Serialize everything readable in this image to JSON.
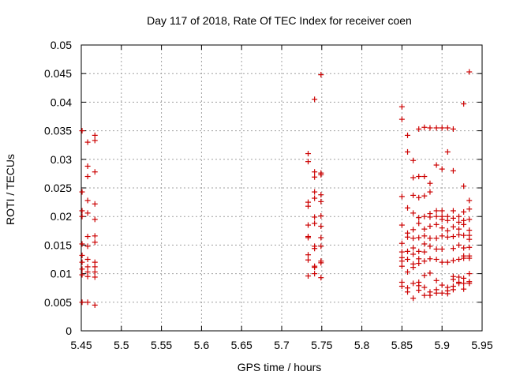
{
  "chart_data": {
    "type": "scatter",
    "title": "Day 117 of 2018, Rate Of TEC Index for receiver coen",
    "xlabel": "GPS time / hours",
    "ylabel": "ROTI / TECUs",
    "xlim": [
      5.45,
      5.95
    ],
    "ylim": [
      0,
      0.05
    ],
    "grid": true,
    "marker": "+",
    "color": "#cc0000",
    "xticks": [
      "5.45",
      "5.5",
      "5.55",
      "5.6",
      "5.65",
      "5.7",
      "5.75",
      "5.8",
      "5.85",
      "5.9",
      "5.95"
    ],
    "yticks": [
      "0",
      "0.005",
      "0.01",
      "0.015",
      "0.02",
      "0.025",
      "0.03",
      "0.035",
      "0.04",
      "0.045",
      "0.05"
    ],
    "series": [
      {
        "name": "ROTI",
        "points": [
          [
            5.451,
            0.035
          ],
          [
            5.451,
            0.0243
          ],
          [
            5.451,
            0.021
          ],
          [
            5.451,
            0.02
          ],
          [
            5.451,
            0.0152
          ],
          [
            5.451,
            0.0132
          ],
          [
            5.451,
            0.012
          ],
          [
            5.451,
            0.0108
          ],
          [
            5.451,
            0.0098
          ],
          [
            5.451,
            0.005
          ],
          [
            5.458,
            0.033
          ],
          [
            5.458,
            0.0288
          ],
          [
            5.458,
            0.027
          ],
          [
            5.458,
            0.0228
          ],
          [
            5.458,
            0.0206
          ],
          [
            5.458,
            0.0165
          ],
          [
            5.458,
            0.0148
          ],
          [
            5.458,
            0.0125
          ],
          [
            5.458,
            0.0112
          ],
          [
            5.458,
            0.0103
          ],
          [
            5.458,
            0.0095
          ],
          [
            5.458,
            0.005
          ],
          [
            5.467,
            0.0342
          ],
          [
            5.467,
            0.0333
          ],
          [
            5.467,
            0.0278
          ],
          [
            5.467,
            0.0222
          ],
          [
            5.467,
            0.0195
          ],
          [
            5.467,
            0.0166
          ],
          [
            5.467,
            0.0155
          ],
          [
            5.467,
            0.012
          ],
          [
            5.467,
            0.0112
          ],
          [
            5.467,
            0.0103
          ],
          [
            5.467,
            0.0094
          ],
          [
            5.467,
            0.0045
          ],
          [
            5.733,
            0.031
          ],
          [
            5.733,
            0.0296
          ],
          [
            5.733,
            0.0225
          ],
          [
            5.733,
            0.0218
          ],
          [
            5.733,
            0.0185
          ],
          [
            5.733,
            0.0165
          ],
          [
            5.733,
            0.0163
          ],
          [
            5.733,
            0.0133
          ],
          [
            5.733,
            0.0124
          ],
          [
            5.733,
            0.0096
          ],
          [
            5.741,
            0.0405
          ],
          [
            5.741,
            0.0278
          ],
          [
            5.741,
            0.0269
          ],
          [
            5.741,
            0.0243
          ],
          [
            5.741,
            0.0232
          ],
          [
            5.741,
            0.0199
          ],
          [
            5.741,
            0.0188
          ],
          [
            5.741,
            0.0148
          ],
          [
            5.741,
            0.0144
          ],
          [
            5.741,
            0.0113
          ],
          [
            5.741,
            0.0111
          ],
          [
            5.741,
            0.01
          ],
          [
            5.749,
            0.0448
          ],
          [
            5.749,
            0.0276
          ],
          [
            5.749,
            0.0273
          ],
          [
            5.749,
            0.0238
          ],
          [
            5.749,
            0.0226
          ],
          [
            5.749,
            0.0201
          ],
          [
            5.749,
            0.0183
          ],
          [
            5.749,
            0.0163
          ],
          [
            5.749,
            0.0148
          ],
          [
            5.749,
            0.0122
          ],
          [
            5.749,
            0.0119
          ],
          [
            5.749,
            0.0093
          ],
          [
            5.85,
            0.0392
          ],
          [
            5.85,
            0.037
          ],
          [
            5.85,
            0.0235
          ],
          [
            5.85,
            0.0185
          ],
          [
            5.85,
            0.0153
          ],
          [
            5.85,
            0.0138
          ],
          [
            5.85,
            0.0128
          ],
          [
            5.85,
            0.0122
          ],
          [
            5.85,
            0.0113
          ],
          [
            5.85,
            0.0085
          ],
          [
            5.85,
            0.0078
          ],
          [
            5.857,
            0.0342
          ],
          [
            5.857,
            0.0313
          ],
          [
            5.857,
            0.0215
          ],
          [
            5.857,
            0.0171
          ],
          [
            5.857,
            0.0164
          ],
          [
            5.857,
            0.0139
          ],
          [
            5.857,
            0.0125
          ],
          [
            5.857,
            0.0103
          ],
          [
            5.857,
            0.0075
          ],
          [
            5.857,
            0.0068
          ],
          [
            5.864,
            0.0298
          ],
          [
            5.864,
            0.0268
          ],
          [
            5.864,
            0.0237
          ],
          [
            5.864,
            0.0206
          ],
          [
            5.864,
            0.0177
          ],
          [
            5.864,
            0.0162
          ],
          [
            5.864,
            0.0145
          ],
          [
            5.864,
            0.0134
          ],
          [
            5.864,
            0.0117
          ],
          [
            5.864,
            0.0111
          ],
          [
            5.864,
            0.0083
          ],
          [
            5.864,
            0.0057
          ],
          [
            5.871,
            0.0353
          ],
          [
            5.871,
            0.027
          ],
          [
            5.871,
            0.0233
          ],
          [
            5.871,
            0.0198
          ],
          [
            5.871,
            0.0188
          ],
          [
            5.871,
            0.0163
          ],
          [
            5.871,
            0.0139
          ],
          [
            5.871,
            0.0126
          ],
          [
            5.871,
            0.0118
          ],
          [
            5.871,
            0.0085
          ],
          [
            5.871,
            0.0079
          ],
          [
            5.871,
            0.0071
          ],
          [
            5.878,
            0.0356
          ],
          [
            5.878,
            0.027
          ],
          [
            5.878,
            0.0236
          ],
          [
            5.878,
            0.02
          ],
          [
            5.878,
            0.0178
          ],
          [
            5.878,
            0.0166
          ],
          [
            5.878,
            0.0152
          ],
          [
            5.878,
            0.0138
          ],
          [
            5.878,
            0.0122
          ],
          [
            5.878,
            0.0097
          ],
          [
            5.878,
            0.0076
          ],
          [
            5.878,
            0.0062
          ],
          [
            5.885,
            0.0355
          ],
          [
            5.885,
            0.0258
          ],
          [
            5.885,
            0.0243
          ],
          [
            5.885,
            0.0205
          ],
          [
            5.885,
            0.0199
          ],
          [
            5.885,
            0.0183
          ],
          [
            5.885,
            0.0162
          ],
          [
            5.885,
            0.0148
          ],
          [
            5.885,
            0.0126
          ],
          [
            5.885,
            0.0101
          ],
          [
            5.885,
            0.0068
          ],
          [
            5.885,
            0.0062
          ],
          [
            5.893,
            0.0355
          ],
          [
            5.893,
            0.029
          ],
          [
            5.893,
            0.021
          ],
          [
            5.893,
            0.02
          ],
          [
            5.893,
            0.0186
          ],
          [
            5.893,
            0.0162
          ],
          [
            5.893,
            0.0143
          ],
          [
            5.893,
            0.0125
          ],
          [
            5.893,
            0.0088
          ],
          [
            5.893,
            0.0072
          ],
          [
            5.893,
            0.0066
          ],
          [
            5.9,
            0.0355
          ],
          [
            5.9,
            0.0283
          ],
          [
            5.9,
            0.021
          ],
          [
            5.9,
            0.02
          ],
          [
            5.9,
            0.0195
          ],
          [
            5.9,
            0.018
          ],
          [
            5.9,
            0.0166
          ],
          [
            5.9,
            0.0143
          ],
          [
            5.9,
            0.012
          ],
          [
            5.9,
            0.008
          ],
          [
            5.9,
            0.0066
          ],
          [
            5.907,
            0.0355
          ],
          [
            5.907,
            0.0313
          ],
          [
            5.907,
            0.02
          ],
          [
            5.907,
            0.0193
          ],
          [
            5.907,
            0.0175
          ],
          [
            5.907,
            0.0164
          ],
          [
            5.907,
            0.012
          ],
          [
            5.907,
            0.0076
          ],
          [
            5.907,
            0.007
          ],
          [
            5.907,
            0.0065
          ],
          [
            5.914,
            0.0353
          ],
          [
            5.914,
            0.028
          ],
          [
            5.914,
            0.021
          ],
          [
            5.914,
            0.0197
          ],
          [
            5.914,
            0.0182
          ],
          [
            5.914,
            0.0165
          ],
          [
            5.914,
            0.0144
          ],
          [
            5.914,
            0.0123
          ],
          [
            5.914,
            0.0095
          ],
          [
            5.914,
            0.009
          ],
          [
            5.914,
            0.0078
          ],
          [
            5.914,
            0.0072
          ],
          [
            5.921,
            0.02
          ],
          [
            5.921,
            0.019
          ],
          [
            5.921,
            0.0178
          ],
          [
            5.921,
            0.0168
          ],
          [
            5.921,
            0.015
          ],
          [
            5.921,
            0.0125
          ],
          [
            5.921,
            0.0094
          ],
          [
            5.921,
            0.0085
          ],
          [
            5.921,
            0.0083
          ],
          [
            5.927,
            0.0397
          ],
          [
            5.927,
            0.0253
          ],
          [
            5.927,
            0.0208
          ],
          [
            5.927,
            0.0193
          ],
          [
            5.927,
            0.0186
          ],
          [
            5.927,
            0.0167
          ],
          [
            5.927,
            0.0145
          ],
          [
            5.927,
            0.0131
          ],
          [
            5.927,
            0.0127
          ],
          [
            5.927,
            0.0092
          ],
          [
            5.927,
            0.0083
          ],
          [
            5.927,
            0.0073
          ],
          [
            5.934,
            0.0453
          ],
          [
            5.934,
            0.0228
          ],
          [
            5.934,
            0.0213
          ],
          [
            5.934,
            0.0195
          ],
          [
            5.934,
            0.0176
          ],
          [
            5.934,
            0.0167
          ],
          [
            5.934,
            0.016
          ],
          [
            5.934,
            0.0146
          ],
          [
            5.934,
            0.0131
          ],
          [
            5.934,
            0.0127
          ],
          [
            5.934,
            0.01
          ],
          [
            5.934,
            0.0086
          ],
          [
            5.934,
            0.0083
          ]
        ]
      }
    ]
  }
}
